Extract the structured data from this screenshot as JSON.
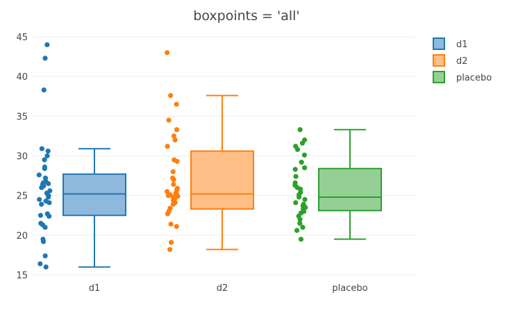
{
  "chart_data": {
    "type": "box",
    "title": "boxpoints = 'all'",
    "xlabel": "",
    "ylabel": "",
    "ylim": [
      15,
      45
    ],
    "yticks": [
      15,
      20,
      25,
      30,
      35,
      40,
      45
    ],
    "grid": true,
    "legend_position": "top-right",
    "categories": [
      "d1",
      "d2",
      "placebo"
    ],
    "series": [
      {
        "name": "d1",
        "color": "#1f77b4",
        "fill": "#8fb9dc",
        "stats": {
          "min": 16.0,
          "q1": 22.5,
          "median": 25.2,
          "q3": 27.7,
          "max": 30.9
        },
        "points": [
          44.0,
          42.3,
          38.3,
          30.9,
          30.6,
          30.0,
          29.5,
          28.6,
          28.4,
          27.6,
          27.2,
          26.8,
          26.6,
          26.5,
          26.4,
          26.2,
          26.0,
          25.6,
          25.3,
          25.0,
          24.8,
          24.5,
          24.3,
          24.1,
          23.9,
          22.7,
          22.5,
          22.4,
          21.5,
          21.3,
          21.0,
          19.5,
          19.2,
          17.4,
          16.4,
          16.0
        ]
      },
      {
        "name": "d2",
        "color": "#ff7f0e",
        "fill": "#ffbf86",
        "stats": {
          "min": 18.2,
          "q1": 23.3,
          "median": 25.2,
          "q3": 30.6,
          "max": 37.6
        },
        "points": [
          43.0,
          37.6,
          36.5,
          34.5,
          33.3,
          32.5,
          32.0,
          31.2,
          29.5,
          29.3,
          28.0,
          27.2,
          27.0,
          26.4,
          25.9,
          25.7,
          25.5,
          25.3,
          25.2,
          25.1,
          25.0,
          24.9,
          24.8,
          24.6,
          24.4,
          24.1,
          23.9,
          23.4,
          23.0,
          22.7,
          21.4,
          21.1,
          19.1,
          18.2
        ]
      },
      {
        "name": "placebo",
        "color": "#2ca02c",
        "fill": "#96cf96",
        "stats": {
          "min": 19.5,
          "q1": 23.1,
          "median": 24.8,
          "q3": 28.4,
          "max": 33.3
        },
        "points": [
          33.3,
          32.0,
          31.6,
          31.2,
          30.8,
          30.1,
          29.2,
          28.5,
          28.3,
          27.4,
          26.6,
          26.3,
          26.0,
          25.8,
          25.4,
          25.1,
          24.8,
          24.5,
          24.1,
          23.9,
          23.7,
          23.5,
          23.3,
          23.0,
          22.8,
          22.4,
          22.0,
          21.5,
          21.0,
          20.6,
          19.5
        ]
      }
    ]
  }
}
